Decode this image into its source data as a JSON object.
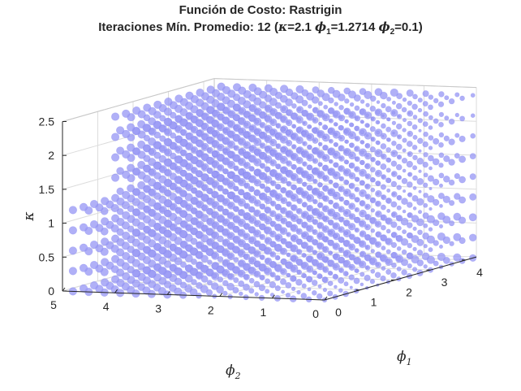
{
  "title": {
    "line1": "Función de Costo: Rastrigin",
    "line2_prefix": "Iteraciones Mín. Promedio: 12 (",
    "kappa_sym": "κ",
    "kappa_eq": "=2.1 ",
    "phi1_sym": "ϕ",
    "phi1_sub": "1",
    "phi1_eq": "=1.2714 ",
    "phi2_sym": "ϕ",
    "phi2_sub": "2",
    "phi2_eq": "=0.1)"
  },
  "axes": {
    "x_label": "ϕ",
    "x_label_sub": "1",
    "y_label": "ϕ",
    "y_label_sub": "2",
    "z_label": "κ"
  },
  "colors": {
    "marker_fill": "#9a9af5",
    "marker_edge": "#7c7cf0",
    "box": "#262626",
    "grid": "#dcdcdc"
  },
  "chart_data": {
    "type": "scatter3d",
    "title": "Función de Costo: Rastrigin",
    "subtitle": "Iteraciones Mín. Promedio: 12 (κ=2.1 ϕ1=1.2714 ϕ2=0.1)",
    "xlabel": "ϕ1",
    "ylabel": "ϕ2",
    "zlabel": "κ",
    "xlim": [
      0,
      4.3
    ],
    "ylim": [
      0,
      5
    ],
    "zlim": [
      0,
      2.5
    ],
    "x_ticks": [
      "0",
      "1",
      "2",
      "3",
      "4"
    ],
    "y_ticks": [
      "0",
      "1",
      "2",
      "3",
      "4",
      "5"
    ],
    "z_ticks": [
      "0",
      "0.5",
      "1",
      "1.5",
      "2",
      "2.5"
    ],
    "x_tick_values": [
      0,
      1,
      2,
      3,
      4
    ],
    "y_tick_values": [
      0,
      1,
      2,
      3,
      4,
      5
    ],
    "z_tick_values": [
      0,
      0.5,
      1,
      1.5,
      2,
      2.5
    ],
    "grid": true,
    "grid_spacing": {
      "phi1": 0.3,
      "phi2": 0.3,
      "kappa": 0.3
    },
    "marker_size_encodes": "average iterations (larger marker = more iterations)",
    "optimum": {
      "kappa": 2.1,
      "phi1": 1.2714,
      "phi2": 0.1,
      "iterations": 12
    }
  }
}
